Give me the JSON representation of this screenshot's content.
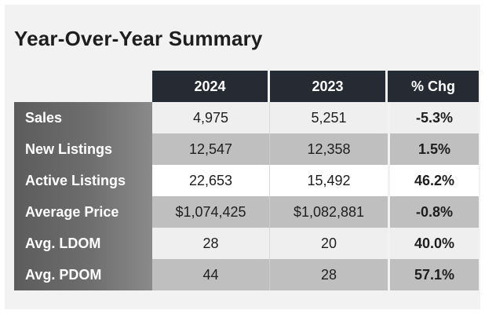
{
  "title": "Year-Over-Year Summary",
  "columns": [
    "2024",
    "2023",
    "% Chg"
  ],
  "rows": [
    {
      "label": "Sales",
      "y2024": "4,975",
      "y2023": "5,251",
      "chg": "-5.3%"
    },
    {
      "label": "New Listings",
      "y2024": "12,547",
      "y2023": "12,358",
      "chg": "1.5%"
    },
    {
      "label": "Active Listings",
      "y2024": "22,653",
      "y2023": "15,492",
      "chg": "46.2%"
    },
    {
      "label": "Average Price",
      "y2024": "$1,074,425",
      "y2023": "$1,082,881",
      "chg": "-0.8%"
    },
    {
      "label": "Avg. LDOM",
      "y2024": "28",
      "y2023": "20",
      "chg": "40.0%"
    },
    {
      "label": "Avg. PDOM",
      "y2024": "44",
      "y2023": "28",
      "chg": "57.1%"
    }
  ]
}
